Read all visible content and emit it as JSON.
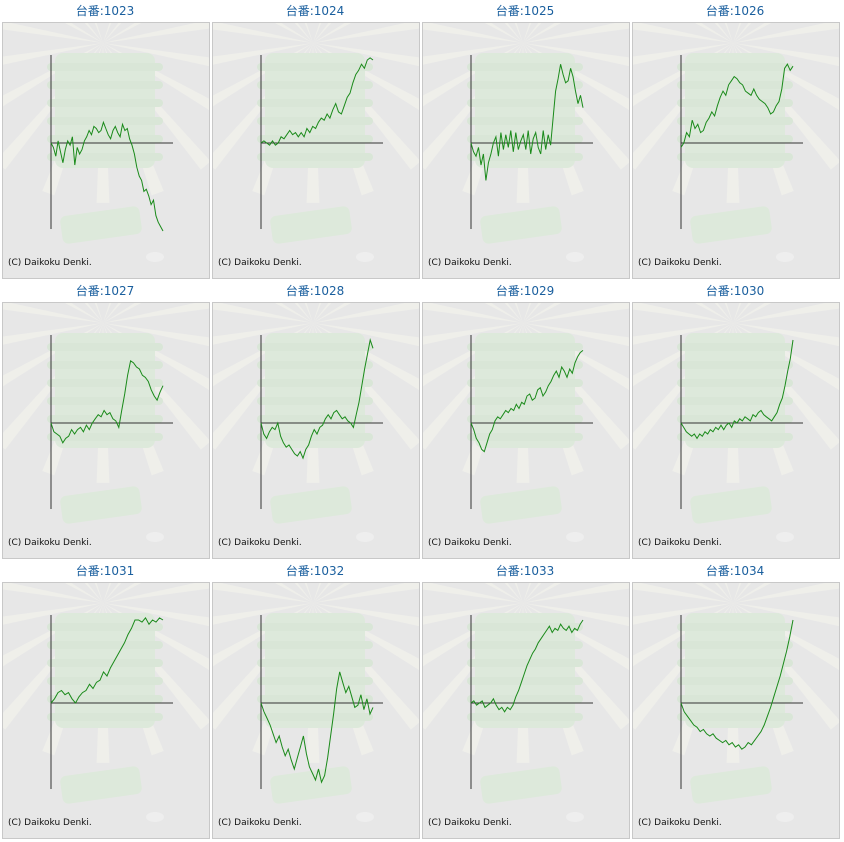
{
  "colors": {
    "line": "#1a8a1a",
    "axis": "#333333",
    "title": "#1a5f9e",
    "panel_bg": "#e7e7e7"
  },
  "copyright_text": "(C) Daikoku Denki.",
  "chart_data": [
    {
      "type": "line",
      "title": "台番:1023",
      "ylim": [
        -80,
        80
      ],
      "values": [
        0,
        -4,
        -12,
        2,
        -8,
        -18,
        -6,
        2,
        -2,
        6,
        -20,
        -4,
        -10,
        -6,
        2,
        6,
        12,
        8,
        16,
        14,
        10,
        12,
        20,
        14,
        8,
        4,
        12,
        16,
        10,
        6,
        18,
        12,
        14,
        4,
        -2,
        -10,
        -22,
        -30,
        -34,
        -44,
        -42,
        -48,
        -56,
        -52,
        -66,
        -72,
        -76,
        -80
      ]
    },
    {
      "type": "line",
      "title": "台番:1024",
      "ylim": [
        -80,
        80
      ],
      "values": [
        0,
        2,
        0,
        -2,
        2,
        -2,
        0,
        6,
        4,
        8,
        12,
        8,
        10,
        6,
        10,
        6,
        14,
        10,
        16,
        14,
        20,
        24,
        22,
        28,
        24,
        32,
        38,
        30,
        28,
        36,
        44,
        48,
        58,
        66,
        70,
        76,
        72,
        80,
        82,
        80
      ]
    },
    {
      "type": "line",
      "title": "台番:1025",
      "ylim": [
        -80,
        80
      ],
      "values": [
        0,
        -8,
        -12,
        -4,
        -20,
        -10,
        -34,
        -18,
        -10,
        0,
        6,
        -12,
        10,
        -6,
        8,
        -4,
        12,
        -8,
        10,
        -6,
        2,
        8,
        -6,
        12,
        -10,
        4,
        10,
        -4,
        -10,
        12,
        -6,
        8,
        -2,
        24,
        50,
        62,
        76,
        66,
        58,
        60,
        72,
        64,
        50,
        38,
        46,
        34
      ]
    },
    {
      "type": "line",
      "title": "台番:1026",
      "ylim": [
        -80,
        80
      ],
      "values": [
        -4,
        0,
        10,
        6,
        22,
        14,
        18,
        10,
        12,
        20,
        24,
        30,
        26,
        36,
        44,
        50,
        46,
        56,
        60,
        64,
        62,
        58,
        56,
        50,
        48,
        46,
        52,
        46,
        42,
        40,
        38,
        34,
        28,
        30,
        36,
        40,
        52,
        72,
        76,
        70,
        74
      ]
    },
    {
      "type": "line",
      "title": "台番:1027",
      "ylim": [
        -80,
        80
      ],
      "values": [
        0,
        -8,
        -10,
        -12,
        -18,
        -14,
        -12,
        -6,
        -10,
        -6,
        -4,
        -8,
        -2,
        -6,
        0,
        4,
        8,
        6,
        12,
        8,
        10,
        4,
        2,
        -4,
        12,
        28,
        46,
        60,
        58,
        54,
        52,
        46,
        44,
        40,
        32,
        26,
        22,
        30,
        36
      ]
    },
    {
      "type": "line",
      "title": "台番:1028",
      "ylim": [
        -80,
        80
      ],
      "values": [
        0,
        -10,
        -14,
        -8,
        -4,
        -6,
        0,
        -12,
        -18,
        -22,
        -20,
        -24,
        -28,
        -30,
        -26,
        -32,
        -24,
        -20,
        -12,
        -6,
        -10,
        -4,
        -2,
        4,
        8,
        4,
        10,
        12,
        8,
        4,
        6,
        2,
        0,
        -4,
        8,
        20,
        36,
        52,
        66,
        80,
        72
      ]
    },
    {
      "type": "line",
      "title": "台番:1029",
      "ylim": [
        -80,
        80
      ],
      "values": [
        0,
        -6,
        -14,
        -18,
        -24,
        -26,
        -18,
        -10,
        -6,
        2,
        6,
        4,
        8,
        12,
        10,
        14,
        12,
        18,
        14,
        20,
        18,
        26,
        28,
        22,
        24,
        32,
        34,
        26,
        30,
        36,
        40,
        46,
        50,
        44,
        54,
        50,
        44,
        52,
        48,
        58,
        64,
        68,
        70
      ]
    },
    {
      "type": "line",
      "title": "台番:1030",
      "ylim": [
        -80,
        80
      ],
      "values": [
        0,
        -4,
        -8,
        -10,
        -12,
        -10,
        -14,
        -10,
        -12,
        -8,
        -10,
        -6,
        -8,
        -4,
        -6,
        -2,
        -6,
        -2,
        0,
        -4,
        2,
        0,
        4,
        2,
        6,
        4,
        2,
        8,
        6,
        10,
        12,
        8,
        6,
        4,
        2,
        6,
        10,
        18,
        24,
        36,
        50,
        62,
        80
      ]
    },
    {
      "type": "line",
      "title": "台番:1031",
      "ylim": [
        -80,
        80
      ],
      "values": [
        0,
        4,
        10,
        12,
        8,
        10,
        4,
        0,
        6,
        10,
        12,
        18,
        14,
        20,
        22,
        30,
        26,
        34,
        40,
        46,
        52,
        58,
        66,
        72,
        80,
        80,
        78,
        82,
        76,
        80,
        78,
        82,
        80
      ]
    },
    {
      "type": "line",
      "title": "台番:1032",
      "ylim": [
        -80,
        80
      ],
      "values": [
        0,
        -8,
        -14,
        -20,
        -28,
        -36,
        -30,
        -40,
        -48,
        -42,
        -52,
        -60,
        -50,
        -40,
        -30,
        -46,
        -58,
        -64,
        -70,
        -60,
        -72,
        -66,
        -50,
        -30,
        -10,
        14,
        30,
        20,
        10,
        16,
        6,
        -4,
        -2,
        8,
        -6,
        4,
        -10,
        -4
      ]
    },
    {
      "type": "line",
      "title": "台番:1033",
      "ylim": [
        -80,
        80
      ],
      "values": [
        0,
        2,
        -2,
        0,
        2,
        -4,
        -2,
        0,
        4,
        -2,
        -6,
        -4,
        -8,
        -4,
        -6,
        -2,
        6,
        12,
        20,
        28,
        36,
        42,
        48,
        52,
        58,
        62,
        66,
        70,
        74,
        68,
        72,
        70,
        76,
        72,
        70,
        74,
        68,
        72,
        70,
        76,
        80
      ]
    },
    {
      "type": "line",
      "title": "台番:1034",
      "ylim": [
        -80,
        80
      ],
      "values": [
        0,
        -8,
        -12,
        -16,
        -20,
        -22,
        -26,
        -24,
        -28,
        -30,
        -28,
        -32,
        -34,
        -36,
        -34,
        -38,
        -36,
        -40,
        -38,
        -42,
        -40,
        -36,
        -38,
        -34,
        -30,
        -26,
        -20,
        -12,
        -4,
        6,
        16,
        26,
        38,
        50,
        64,
        80
      ]
    }
  ]
}
